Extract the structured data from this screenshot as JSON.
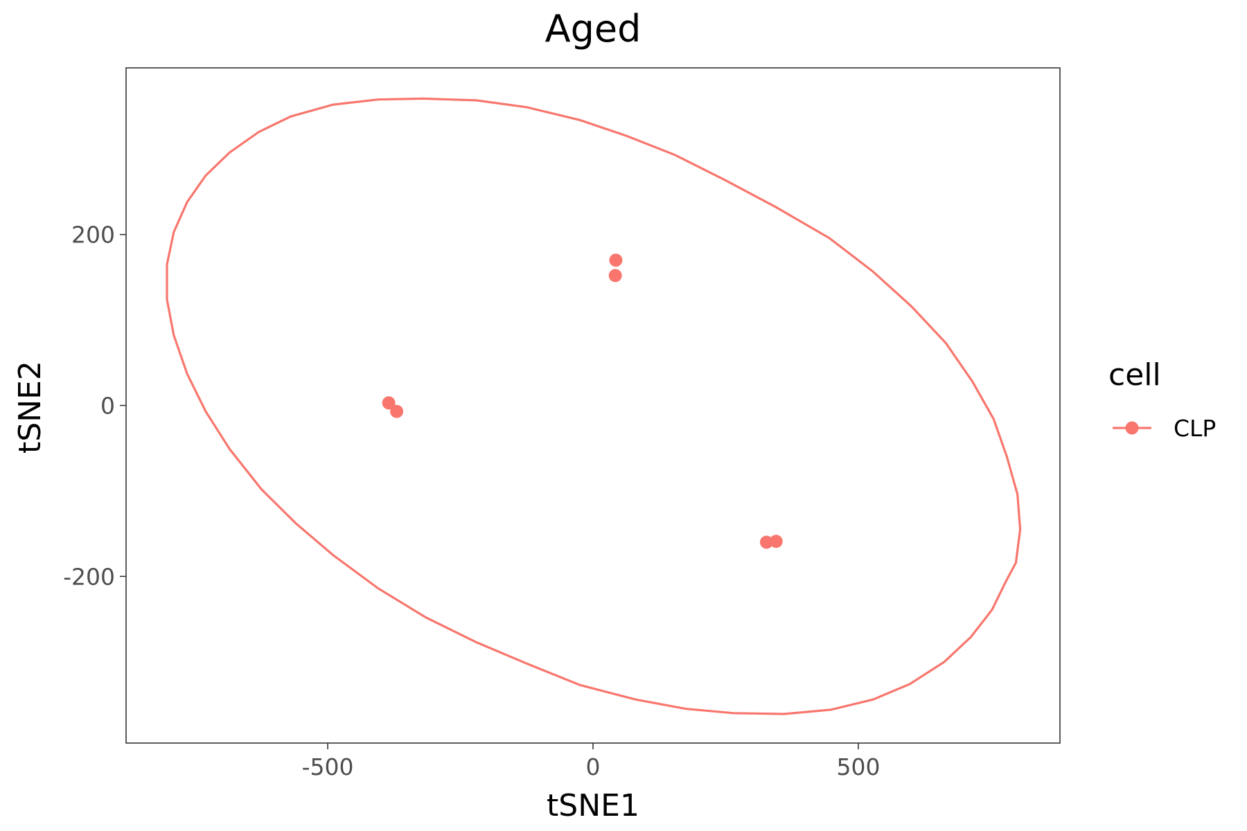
{
  "chart_data": {
    "type": "scatter",
    "title": "Aged",
    "xlabel": "tSNE1",
    "ylabel": "tSNE2",
    "xlim": [
      -880,
      880
    ],
    "ylim": [
      -395,
      395
    ],
    "x_ticks": [
      -500,
      0,
      500
    ],
    "x_tick_labels": [
      "-500",
      "0",
      "500"
    ],
    "y_ticks": [
      -200,
      0,
      200
    ],
    "y_tick_labels": [
      "-200",
      "0",
      "200"
    ],
    "grid": false,
    "legend": {
      "title": "cell",
      "position": "right",
      "entries": [
        "CLP"
      ]
    },
    "series": [
      {
        "name": "CLP",
        "color": "#F8766D",
        "points": [
          {
            "x": 43,
            "y": 170
          },
          {
            "x": 42,
            "y": 152
          },
          {
            "x": -385,
            "y": 3
          },
          {
            "x": -370,
            "y": -7
          },
          {
            "x": 327,
            "y": -160
          },
          {
            "x": 345,
            "y": -159
          }
        ],
        "ellipse": [
          [
            -803,
            165
          ],
          [
            -803,
            124
          ],
          [
            -790,
            82
          ],
          [
            -765,
            37
          ],
          [
            -730,
            -7
          ],
          [
            -685,
            -51
          ],
          [
            -625,
            -98
          ],
          [
            -560,
            -138
          ],
          [
            -490,
            -175
          ],
          [
            -405,
            -214
          ],
          [
            -315,
            -248
          ],
          [
            -220,
            -277
          ],
          [
            -125,
            -302
          ],
          [
            -25,
            -327
          ],
          [
            80,
            -344
          ],
          [
            175,
            -355
          ],
          [
            265,
            -360
          ],
          [
            360,
            -361
          ],
          [
            448,
            -356
          ],
          [
            528,
            -344
          ],
          [
            597,
            -326
          ],
          [
            662,
            -300
          ],
          [
            712,
            -271
          ],
          [
            752,
            -239
          ],
          [
            778,
            -206
          ],
          [
            797,
            -184
          ],
          [
            805,
            -145
          ],
          [
            800,
            -104
          ],
          [
            780,
            -60
          ],
          [
            755,
            -16
          ],
          [
            715,
            28
          ],
          [
            665,
            73
          ],
          [
            600,
            116
          ],
          [
            527,
            157
          ],
          [
            445,
            196
          ],
          [
            345,
            232
          ],
          [
            248,
            264
          ],
          [
            155,
            293
          ],
          [
            65,
            315
          ],
          [
            -25,
            334
          ],
          [
            -125,
            349
          ],
          [
            -220,
            357
          ],
          [
            -320,
            359
          ],
          [
            -405,
            358
          ],
          [
            -490,
            352
          ],
          [
            -570,
            338
          ],
          [
            -630,
            320
          ],
          [
            -685,
            296
          ],
          [
            -730,
            269
          ],
          [
            -765,
            238
          ],
          [
            -790,
            203
          ],
          [
            -803,
            165
          ]
        ]
      }
    ]
  }
}
